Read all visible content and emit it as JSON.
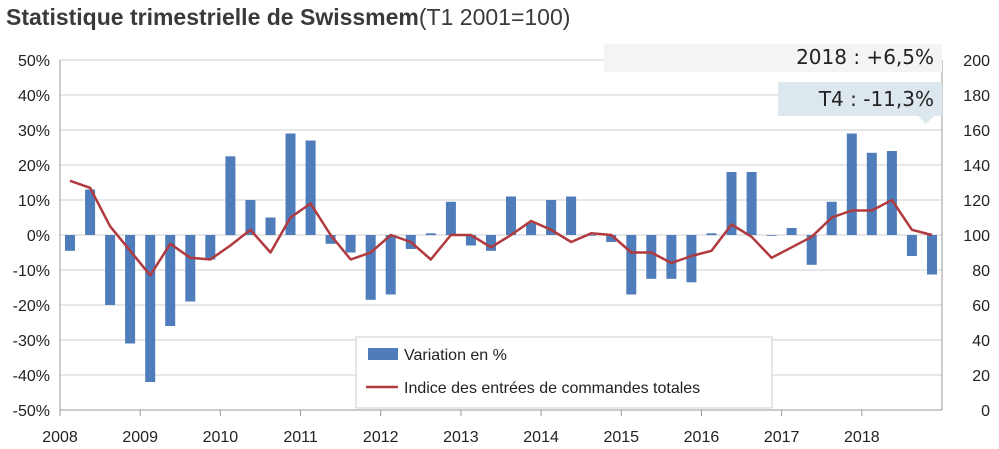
{
  "chart_data": {
    "type": "bar+line",
    "title": "Statistique trimestrielle de Swissmem",
    "subtitle": "(T1 2001=100)",
    "left_axis": {
      "ylim": [
        -50,
        50
      ],
      "ticks": [
        "50%",
        "40%",
        "30%",
        "20%",
        "10%",
        "0%",
        "-10%",
        "-20%",
        "-30%",
        "-40%",
        "-50%"
      ]
    },
    "right_axis": {
      "ylim": [
        0,
        200
      ],
      "ticks": [
        "200",
        "180",
        "160",
        "140",
        "120",
        "100",
        "80",
        "60",
        "40",
        "20",
        "0"
      ]
    },
    "x_labels": [
      "2008",
      "2009",
      "2010",
      "2011",
      "2012",
      "2013",
      "2014",
      "2015",
      "2016",
      "2017",
      "2018"
    ],
    "quarters": [
      "2008 T1",
      "2008 T2",
      "2008 T3",
      "2008 T4",
      "2009 T1",
      "2009 T2",
      "2009 T3",
      "2009 T4",
      "2010 T1",
      "2010 T2",
      "2010 T3",
      "2010 T4",
      "2011 T1",
      "2011 T2",
      "2011 T3",
      "2011 T4",
      "2012 T1",
      "2012 T2",
      "2012 T3",
      "2012 T4",
      "2013 T1",
      "2013 T2",
      "2013 T3",
      "2013 T4",
      "2014 T1",
      "2014 T2",
      "2014 T3",
      "2014 T4",
      "2015 T1",
      "2015 T2",
      "2015 T3",
      "2015 T4",
      "2016 T1",
      "2016 T2",
      "2016 T3",
      "2016 T4",
      "2017 T1",
      "2017 T2",
      "2017 T3",
      "2017 T4",
      "2018 T1",
      "2018 T2",
      "2018 T3",
      "2018 T4"
    ],
    "series": [
      {
        "name": "Variation en %",
        "type": "bar",
        "axis": "left",
        "color": "#4f7cba",
        "values": [
          -4.5,
          13,
          -20,
          -31,
          -42,
          -26,
          -19,
          -7,
          22.5,
          10,
          5,
          29,
          27,
          -2.5,
          -5,
          -18.5,
          -17,
          -4,
          0.5,
          9.5,
          -3,
          -4.5,
          11,
          3.5,
          10,
          11,
          0,
          -2,
          -17,
          -12.5,
          -12.5,
          -13.5,
          0.5,
          18,
          18,
          0,
          2,
          -8.5,
          9.5,
          29,
          23.5,
          24,
          -6,
          -11.3
        ]
      },
      {
        "name": "Indice des entrées de commandes totales",
        "type": "line",
        "axis": "right",
        "color": "#b03a3e",
        "values": [
          131,
          127,
          105,
          91,
          77,
          95,
          87,
          86,
          94,
          103,
          90,
          110,
          118,
          100,
          86,
          90,
          100,
          96,
          86,
          100,
          100,
          93,
          100,
          108,
          103,
          96,
          101,
          100,
          90,
          90,
          84,
          88,
          91,
          106,
          99,
          87,
          93,
          99,
          110,
          114,
          114,
          120,
          103,
          100
        ]
      }
    ],
    "annotations": [
      "2018 : +6,5%",
      "T4 : -11,3%"
    ],
    "legend_position": "bottom-center"
  }
}
